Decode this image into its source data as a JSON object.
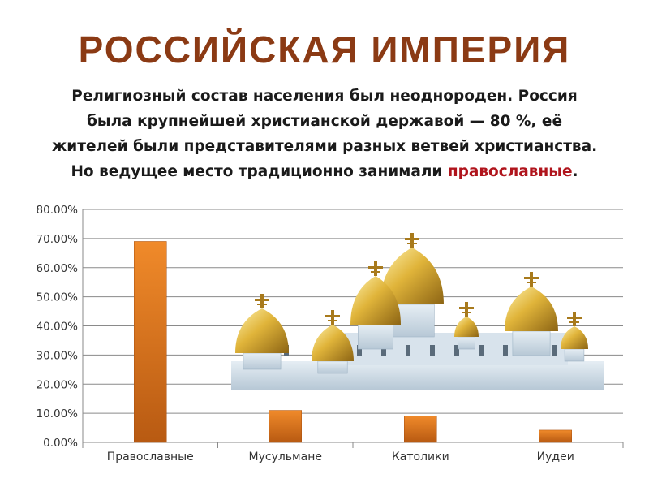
{
  "header": {
    "title": "РОССИЙСКАЯ ИМПЕРИЯ",
    "line1": "Религиозный состав населения был неоднороден. Россия",
    "line2": "была крупнейшей христианской державой — 80 %, её",
    "line3": "жителей были представителями разных ветвей христианства.",
    "line4_pre": "Но ведущее место традиционно занимали ",
    "line4_highlight": "православные",
    "line4_post": "."
  },
  "colors": {
    "title": "#8b3a14",
    "highlight": "#b0141c",
    "bar": "#e2781c",
    "bar_dark": "#b85a12",
    "gold": "#d9a72c",
    "church_wall": "#cfdce6"
  },
  "illustration": {
    "name": "golden-domed-cathedral-image"
  },
  "chart_data": {
    "type": "bar",
    "categories": [
      "Православные",
      "Мусульмане",
      "Католики",
      "Иудеи"
    ],
    "values": [
      69.0,
      11.0,
      9.0,
      4.2
    ],
    "yticks": [
      "0.00%",
      "10.00%",
      "20.00%",
      "30.00%",
      "40.00%",
      "50.00%",
      "60.00%",
      "70.00%",
      "80.00%"
    ],
    "ylim": [
      0,
      80
    ],
    "grid": true,
    "legend": "none",
    "title": "",
    "xlabel": "",
    "ylabel": ""
  }
}
